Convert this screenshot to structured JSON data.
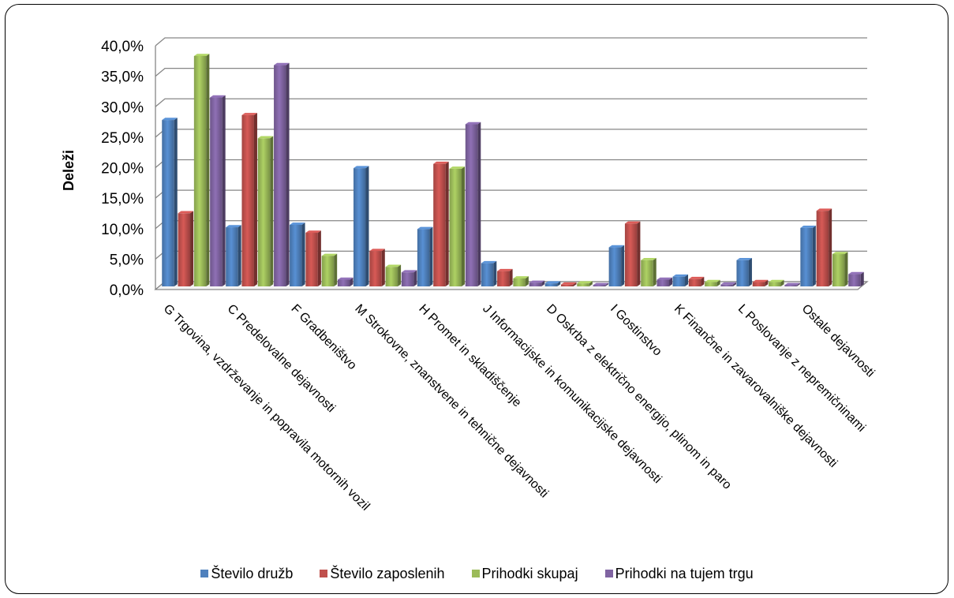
{
  "chart_data": {
    "type": "bar",
    "title": "",
    "xlabel": "",
    "ylabel": "Deleži",
    "ylim": [
      0,
      40
    ],
    "yticks": [
      "0,0%",
      "5,0%",
      "10,0%",
      "15,0%",
      "20,0%",
      "25,0%",
      "30,0%",
      "35,0%",
      "40,0%"
    ],
    "grid": true,
    "legend_position": "bottom",
    "categories": [
      "G Trgovina, vzdrževanje in popravila motornih vozil",
      "C Predelovalne dejavnosti",
      "F Gradbeništvo",
      "M Strokovne, znanstvene in tehnične dejavnosti",
      "H Promet in skladiščenje",
      "J Informacijske in komunikacijske dejavnosti",
      "D Oskrba z električno energijo, plinom in paro",
      "I Gostinstvo",
      "K Finančne in zavarovalniške dejavnosti",
      "L Poslovanje z nepremičninami",
      "Ostale dejavnosti"
    ],
    "series": [
      {
        "name": "Število družb",
        "color": "#4F81BD",
        "values": [
          27.3,
          9.7,
          10.1,
          19.4,
          9.4,
          3.8,
          0.5,
          6.4,
          1.6,
          4.3,
          9.6
        ]
      },
      {
        "name": "Število zaposlenih",
        "color": "#C0504D",
        "values": [
          12.0,
          28.1,
          8.8,
          5.8,
          20.1,
          2.5,
          0.3,
          10.3,
          1.2,
          0.7,
          12.4
        ]
      },
      {
        "name": "Prihodki skupaj",
        "color": "#9BBB59",
        "values": [
          37.8,
          24.3,
          5.0,
          3.2,
          19.3,
          1.3,
          0.5,
          4.3,
          0.7,
          0.7,
          5.3
        ]
      },
      {
        "name": "Prihodki na tujem trgu",
        "color": "#8064A2",
        "values": [
          31.0,
          36.3,
          1.1,
          2.3,
          26.6,
          0.6,
          0.2,
          1.1,
          0.3,
          0.2,
          2.0
        ]
      }
    ]
  }
}
